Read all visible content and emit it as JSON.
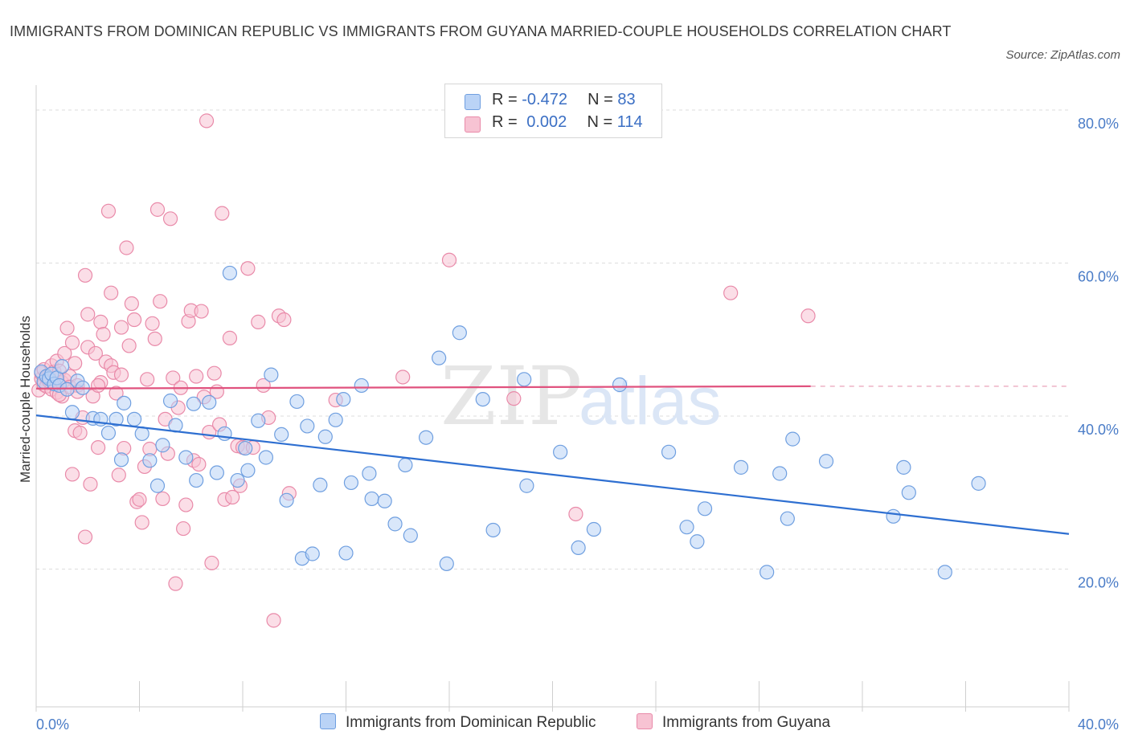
{
  "title": "IMMIGRANTS FROM DOMINICAN REPUBLIC VS IMMIGRANTS FROM GUYANA MARRIED-COUPLE HOUSEHOLDS CORRELATION CHART",
  "source": "Source: ZipAtlas.com",
  "watermark": {
    "zip": "ZIP",
    "atlas": "atlas"
  },
  "legend": {
    "series1": {
      "r_label": "R = ",
      "r_value": "-0.472",
      "n_label": "N = ",
      "n_value": "83"
    },
    "series2": {
      "r_label": "R = ",
      "r_value": "0.002",
      "n_label": "N = ",
      "n_value": "114"
    }
  },
  "bottom_legend": {
    "series1": "Immigrants from Dominican Republic",
    "series2": "Immigrants from Guyana"
  },
  "colors": {
    "blue_fill": "#bad3f6",
    "blue_stroke": "#6f9fe0",
    "blue_line": "#2e6fd1",
    "pink_fill": "#f7c3d3",
    "pink_stroke": "#e98aa9",
    "pink_line": "#e0527e"
  },
  "chart_data": {
    "type": "scatter",
    "title": "IMMIGRANTS FROM DOMINICAN REPUBLIC VS IMMIGRANTS FROM GUYANA MARRIED-COUPLE HOUSEHOLDS CORRELATION CHART",
    "xlabel": "",
    "ylabel": "Married-couple Households",
    "xlim": [
      0,
      40
    ],
    "ylim": [
      2,
      82
    ],
    "x_ticks": [
      "0.0%",
      "40.0%"
    ],
    "y_ticks": [
      {
        "value": 80,
        "label": "80.0%"
      },
      {
        "value": 60,
        "label": "60.0%"
      },
      {
        "value": 40,
        "label": "40.0%"
      },
      {
        "value": 20,
        "label": "20.0%"
      }
    ],
    "grid": true,
    "legend_position": "top-center",
    "series": [
      {
        "name": "Immigrants from Dominican Republic",
        "R": -0.472,
        "N": 83,
        "trend": {
          "x": [
            0,
            40
          ],
          "y": [
            40.1,
            24.6
          ]
        },
        "points": [
          [
            0.2,
            45.8
          ],
          [
            0.3,
            44.5
          ],
          [
            0.4,
            45.2
          ],
          [
            0.5,
            44.9
          ],
          [
            0.6,
            45.5
          ],
          [
            0.7,
            44.2
          ],
          [
            0.8,
            45.0
          ],
          [
            0.9,
            44.0
          ],
          [
            1.0,
            46.5
          ],
          [
            1.2,
            43.5
          ],
          [
            1.4,
            40.5
          ],
          [
            1.6,
            44.6
          ],
          [
            1.8,
            43.7
          ],
          [
            2.2,
            39.7
          ],
          [
            2.5,
            39.6
          ],
          [
            2.8,
            37.8
          ],
          [
            3.1,
            39.6
          ],
          [
            3.3,
            34.3
          ],
          [
            3.4,
            41.7
          ],
          [
            3.8,
            39.6
          ],
          [
            4.1,
            37.7
          ],
          [
            4.4,
            34.2
          ],
          [
            4.7,
            30.9
          ],
          [
            4.9,
            36.2
          ],
          [
            5.2,
            42.0
          ],
          [
            5.4,
            38.8
          ],
          [
            5.8,
            34.6
          ],
          [
            6.1,
            41.6
          ],
          [
            6.2,
            31.6
          ],
          [
            6.7,
            41.8
          ],
          [
            7.0,
            32.6
          ],
          [
            7.3,
            37.7
          ],
          [
            7.5,
            58.7
          ],
          [
            7.8,
            31.6
          ],
          [
            8.1,
            35.8
          ],
          [
            8.2,
            32.9
          ],
          [
            8.6,
            39.4
          ],
          [
            8.9,
            34.6
          ],
          [
            9.1,
            45.4
          ],
          [
            9.5,
            37.6
          ],
          [
            9.7,
            29.0
          ],
          [
            10.1,
            41.9
          ],
          [
            10.3,
            21.4
          ],
          [
            10.5,
            38.7
          ],
          [
            10.7,
            22.0
          ],
          [
            11.0,
            31.0
          ],
          [
            11.2,
            37.3
          ],
          [
            11.6,
            39.5
          ],
          [
            11.9,
            42.2
          ],
          [
            12.0,
            22.1
          ],
          [
            12.2,
            31.3
          ],
          [
            12.6,
            44.0
          ],
          [
            12.9,
            32.5
          ],
          [
            13.0,
            29.2
          ],
          [
            13.5,
            28.9
          ],
          [
            13.9,
            25.9
          ],
          [
            14.3,
            33.6
          ],
          [
            14.5,
            24.4
          ],
          [
            15.1,
            37.2
          ],
          [
            15.6,
            47.6
          ],
          [
            15.9,
            20.7
          ],
          [
            16.4,
            50.9
          ],
          [
            17.3,
            42.2
          ],
          [
            17.7,
            25.1
          ],
          [
            18.9,
            44.8
          ],
          [
            19.0,
            30.9
          ],
          [
            20.3,
            35.3
          ],
          [
            21.0,
            22.8
          ],
          [
            21.6,
            25.2
          ],
          [
            22.6,
            44.1
          ],
          [
            24.5,
            35.3
          ],
          [
            25.2,
            25.5
          ],
          [
            25.6,
            23.6
          ],
          [
            25.9,
            27.9
          ],
          [
            27.3,
            33.3
          ],
          [
            28.3,
            19.6
          ],
          [
            28.8,
            32.5
          ],
          [
            29.1,
            26.6
          ],
          [
            29.3,
            37.0
          ],
          [
            30.6,
            34.1
          ],
          [
            33.2,
            26.9
          ],
          [
            33.6,
            33.3
          ],
          [
            33.8,
            30.0
          ],
          [
            35.2,
            19.6
          ],
          [
            36.5,
            31.2
          ]
        ]
      },
      {
        "name": "Immigrants from Guyana",
        "R": 0.002,
        "N": 114,
        "trend": {
          "x": [
            0,
            30
          ],
          "y": [
            43.6,
            43.9
          ]
        },
        "points": [
          [
            0.1,
            43.4
          ],
          [
            0.2,
            44.9
          ],
          [
            0.2,
            45.6
          ],
          [
            0.3,
            44.1
          ],
          [
            0.3,
            46.1
          ],
          [
            0.4,
            45.0
          ],
          [
            0.4,
            43.9
          ],
          [
            0.5,
            45.3
          ],
          [
            0.5,
            44.6
          ],
          [
            0.6,
            46.6
          ],
          [
            0.6,
            43.5
          ],
          [
            0.7,
            45.8
          ],
          [
            0.7,
            44.2
          ],
          [
            0.8,
            47.2
          ],
          [
            0.8,
            43.1
          ],
          [
            0.9,
            45.9
          ],
          [
            1.0,
            44.4
          ],
          [
            1.0,
            42.6
          ],
          [
            1.1,
            48.2
          ],
          [
            1.1,
            44.7
          ],
          [
            1.2,
            51.5
          ],
          [
            1.3,
            45.2
          ],
          [
            1.3,
            43.8
          ],
          [
            1.4,
            49.6
          ],
          [
            1.4,
            32.4
          ],
          [
            1.5,
            46.9
          ],
          [
            1.5,
            38.1
          ],
          [
            1.6,
            44.0
          ],
          [
            1.7,
            37.8
          ],
          [
            1.8,
            39.8
          ],
          [
            1.9,
            58.4
          ],
          [
            1.9,
            24.2
          ],
          [
            2.0,
            53.3
          ],
          [
            2.0,
            49.0
          ],
          [
            2.1,
            31.1
          ],
          [
            2.2,
            42.6
          ],
          [
            2.3,
            48.2
          ],
          [
            2.4,
            35.9
          ],
          [
            2.5,
            52.3
          ],
          [
            2.5,
            44.4
          ],
          [
            2.6,
            50.7
          ],
          [
            2.7,
            47.1
          ],
          [
            2.8,
            66.8
          ],
          [
            2.9,
            56.1
          ],
          [
            2.9,
            46.6
          ],
          [
            3.0,
            45.7
          ],
          [
            3.1,
            43.0
          ],
          [
            3.2,
            32.3
          ],
          [
            3.3,
            51.6
          ],
          [
            3.4,
            35.8
          ],
          [
            3.5,
            62.0
          ],
          [
            3.6,
            49.2
          ],
          [
            3.7,
            54.7
          ],
          [
            3.8,
            52.6
          ],
          [
            3.9,
            28.8
          ],
          [
            4.0,
            29.1
          ],
          [
            4.1,
            26.1
          ],
          [
            4.2,
            33.4
          ],
          [
            4.3,
            44.8
          ],
          [
            4.4,
            35.7
          ],
          [
            4.5,
            52.1
          ],
          [
            4.6,
            50.1
          ],
          [
            4.7,
            67.0
          ],
          [
            4.8,
            55.0
          ],
          [
            4.9,
            29.2
          ],
          [
            5.0,
            39.6
          ],
          [
            5.1,
            35.1
          ],
          [
            5.2,
            65.8
          ],
          [
            5.3,
            45.0
          ],
          [
            5.4,
            18.1
          ],
          [
            5.5,
            41.1
          ],
          [
            5.6,
            43.7
          ],
          [
            5.7,
            25.3
          ],
          [
            5.8,
            28.4
          ],
          [
            5.9,
            52.4
          ],
          [
            6.0,
            53.8
          ],
          [
            6.1,
            34.2
          ],
          [
            6.2,
            45.2
          ],
          [
            6.3,
            33.7
          ],
          [
            6.4,
            53.7
          ],
          [
            6.5,
            42.5
          ],
          [
            6.6,
            78.6
          ],
          [
            6.7,
            37.9
          ],
          [
            6.8,
            20.8
          ],
          [
            6.9,
            45.6
          ],
          [
            7.0,
            43.2
          ],
          [
            7.1,
            38.9
          ],
          [
            7.2,
            66.5
          ],
          [
            7.3,
            29.1
          ],
          [
            7.5,
            50.2
          ],
          [
            7.6,
            29.4
          ],
          [
            7.8,
            36.1
          ],
          [
            7.9,
            30.9
          ],
          [
            8.0,
            35.9
          ],
          [
            8.2,
            59.3
          ],
          [
            8.4,
            35.9
          ],
          [
            8.6,
            52.3
          ],
          [
            8.8,
            44.0
          ],
          [
            9.0,
            39.8
          ],
          [
            9.2,
            13.3
          ],
          [
            9.4,
            53.1
          ],
          [
            9.6,
            52.6
          ],
          [
            9.8,
            29.9
          ],
          [
            11.6,
            42.1
          ],
          [
            14.2,
            45.1
          ],
          [
            16.0,
            60.4
          ],
          [
            18.5,
            42.3
          ],
          [
            20.9,
            27.2
          ],
          [
            26.9,
            56.1
          ],
          [
            29.9,
            53.1
          ],
          [
            3.3,
            45.4
          ],
          [
            2.4,
            44.0
          ],
          [
            1.6,
            43.2
          ],
          [
            0.9,
            42.8
          ]
        ]
      }
    ]
  }
}
